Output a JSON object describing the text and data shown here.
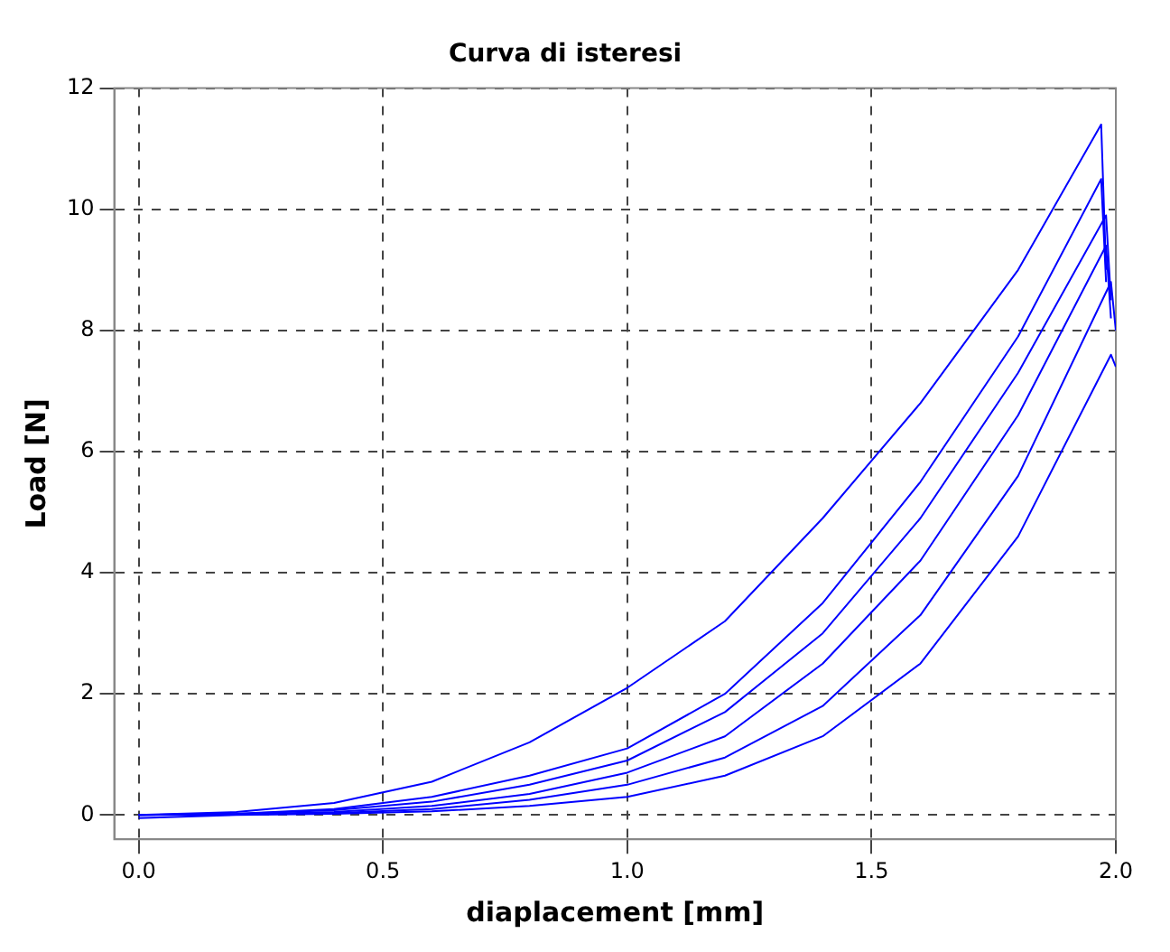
{
  "chart_data": {
    "type": "line",
    "title": "Curva di isteresi",
    "xlabel": "diaplacement [mm]",
    "ylabel": "Load [N]",
    "xlim": [
      -0.05,
      2.0
    ],
    "ylim": [
      -0.4,
      12
    ],
    "xticks": [
      {
        "value": 0,
        "label": "0.0"
      },
      {
        "value": 0.5,
        "label": "0.5"
      },
      {
        "value": 1,
        "label": "1.0"
      },
      {
        "value": 1.5,
        "label": "1.5"
      },
      {
        "value": 2,
        "label": "2.0"
      }
    ],
    "yticks": [
      0,
      2,
      4,
      6,
      8,
      10,
      12
    ],
    "grid": true,
    "legend": false,
    "marker": "none",
    "line_style": "solid",
    "series": [
      {
        "color": "#0000ff",
        "x": [
          0,
          0.2,
          0.4,
          0.6,
          0.8,
          1.0,
          1.2,
          1.4,
          1.6,
          1.8,
          1.97,
          1.98
        ],
        "values": [
          0,
          0.05,
          0.2,
          0.55,
          1.2,
          2.1,
          3.2,
          4.9,
          6.8,
          9.0,
          11.4,
          9.0
        ]
      },
      {
        "color": "#0000ff",
        "x": [
          0,
          0.2,
          0.4,
          0.6,
          0.8,
          1.0,
          1.2,
          1.4,
          1.6,
          1.8,
          1.97,
          1.98
        ],
        "values": [
          0,
          0.02,
          0.1,
          0.3,
          0.65,
          1.1,
          2.0,
          3.5,
          5.5,
          7.9,
          10.5,
          8.8
        ]
      },
      {
        "color": "#0000ff",
        "x": [
          0,
          0.2,
          0.4,
          0.6,
          0.8,
          1.0,
          1.2,
          1.4,
          1.6,
          1.8,
          1.98,
          1.99
        ],
        "values": [
          0,
          0.02,
          0.08,
          0.22,
          0.5,
          0.9,
          1.7,
          3.0,
          4.9,
          7.3,
          9.9,
          8.5
        ]
      },
      {
        "color": "#0000ff",
        "x": [
          0,
          0.2,
          0.4,
          0.6,
          0.8,
          1.0,
          1.2,
          1.4,
          1.6,
          1.8,
          1.98,
          1.99
        ],
        "values": [
          0,
          0.01,
          0.05,
          0.15,
          0.35,
          0.7,
          1.3,
          2.5,
          4.2,
          6.6,
          9.4,
          8.2
        ]
      },
      {
        "color": "#0000ff",
        "x": [
          0,
          0.2,
          0.4,
          0.6,
          0.8,
          1.0,
          1.2,
          1.4,
          1.6,
          1.8,
          1.99,
          2.0
        ],
        "values": [
          0,
          0.01,
          0.03,
          0.1,
          0.25,
          0.5,
          0.95,
          1.8,
          3.3,
          5.6,
          8.8,
          8.0
        ]
      },
      {
        "color": "#0000ff",
        "x": [
          0,
          0.2,
          0.4,
          0.6,
          0.8,
          1.0,
          1.2,
          1.4,
          1.6,
          1.8,
          1.99,
          2.0
        ],
        "values": [
          -0.05,
          0,
          0.02,
          0.06,
          0.15,
          0.3,
          0.65,
          1.3,
          2.5,
          4.6,
          7.6,
          7.4
        ]
      }
    ]
  }
}
